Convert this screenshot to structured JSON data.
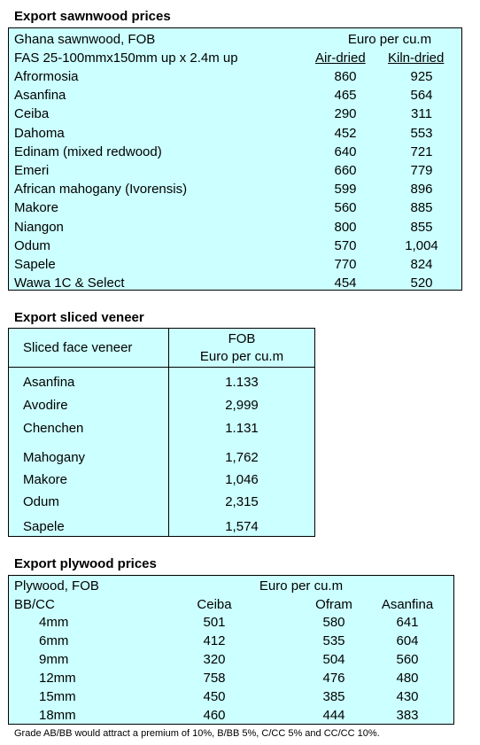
{
  "sawnwood": {
    "title": "Export sawnwood prices",
    "header1_left": "Ghana sawnwood, FOB",
    "header1_right": "Euro per cu.m",
    "header2_left": "FAS 25-100mmx150mm up x 2.4m up",
    "col_air": "Air-dried",
    "col_kiln": "Kiln-dried",
    "rows": [
      {
        "name": "Afrormosia",
        "air": "860",
        "kiln": "925"
      },
      {
        "name": "Asanfina",
        "air": "465",
        "kiln": "564"
      },
      {
        "name": "Ceiba",
        "air": "290",
        "kiln": "311"
      },
      {
        "name": "Dahoma",
        "air": "452",
        "kiln": "553"
      },
      {
        "name": "Edinam (mixed redwood)",
        "air": "640",
        "kiln": "721"
      },
      {
        "name": "Emeri",
        "air": "660",
        "kiln": "779"
      },
      {
        "name": "African mahogany (Ivorensis)",
        "air": "599",
        "kiln": "896"
      },
      {
        "name": "Makore",
        "air": "560",
        "kiln": "885"
      },
      {
        "name": "Niangon",
        "air": "800",
        "kiln": "855"
      },
      {
        "name": "Odum",
        "air": "570",
        "kiln": "1,004"
      },
      {
        "name": "Sapele",
        "air": "770",
        "kiln": "824"
      },
      {
        "name": "Wawa 1C & Select",
        "air": "454",
        "kiln": "520"
      }
    ]
  },
  "veneer": {
    "title": "Export sliced veneer",
    "header_left": "Sliced face veneer",
    "header_right_1": "FOB",
    "header_right_2": "Euro per cu.m",
    "rows": [
      {
        "name": "Asanfina",
        "value": "1.133"
      },
      {
        "name": "Avodire",
        "value": "2,999"
      },
      {
        "name": "Chenchen",
        "value": "1.131"
      },
      {
        "name": "Mahogany",
        "value": "1,762"
      },
      {
        "name": "Makore",
        "value": "1,046"
      },
      {
        "name": "Odum",
        "value": "2,315"
      },
      {
        "name": "Sapele",
        "value": "1,574"
      }
    ]
  },
  "plywood": {
    "title": "Export plywood prices",
    "header1_left": "Plywood, FOB",
    "header1_right": "Euro per cu.m",
    "header2_left": "BB/CC",
    "col_ceiba": "Ceiba",
    "col_ofram": "Ofram",
    "col_asanfina": "Asanfina",
    "rows": [
      {
        "size": "4mm",
        "ceiba": "501",
        "ofram": "580",
        "asanfina": "641"
      },
      {
        "size": "6mm",
        "ceiba": "412",
        "ofram": "535",
        "asanfina": "604"
      },
      {
        "size": "9mm",
        "ceiba": "320",
        "ofram": "504",
        "asanfina": "560"
      },
      {
        "size": "12mm",
        "ceiba": "758",
        "ofram": "476",
        "asanfina": "480"
      },
      {
        "size": "15mm",
        "ceiba": "450",
        "ofram": "385",
        "asanfina": "430"
      },
      {
        "size": "18mm",
        "ceiba": "460",
        "ofram": "444",
        "asanfina": "383"
      }
    ],
    "footnote": "Grade AB/BB would attract a premium of 10%, B/BB 5%, C/CC 5% and CC/CC 10%."
  }
}
